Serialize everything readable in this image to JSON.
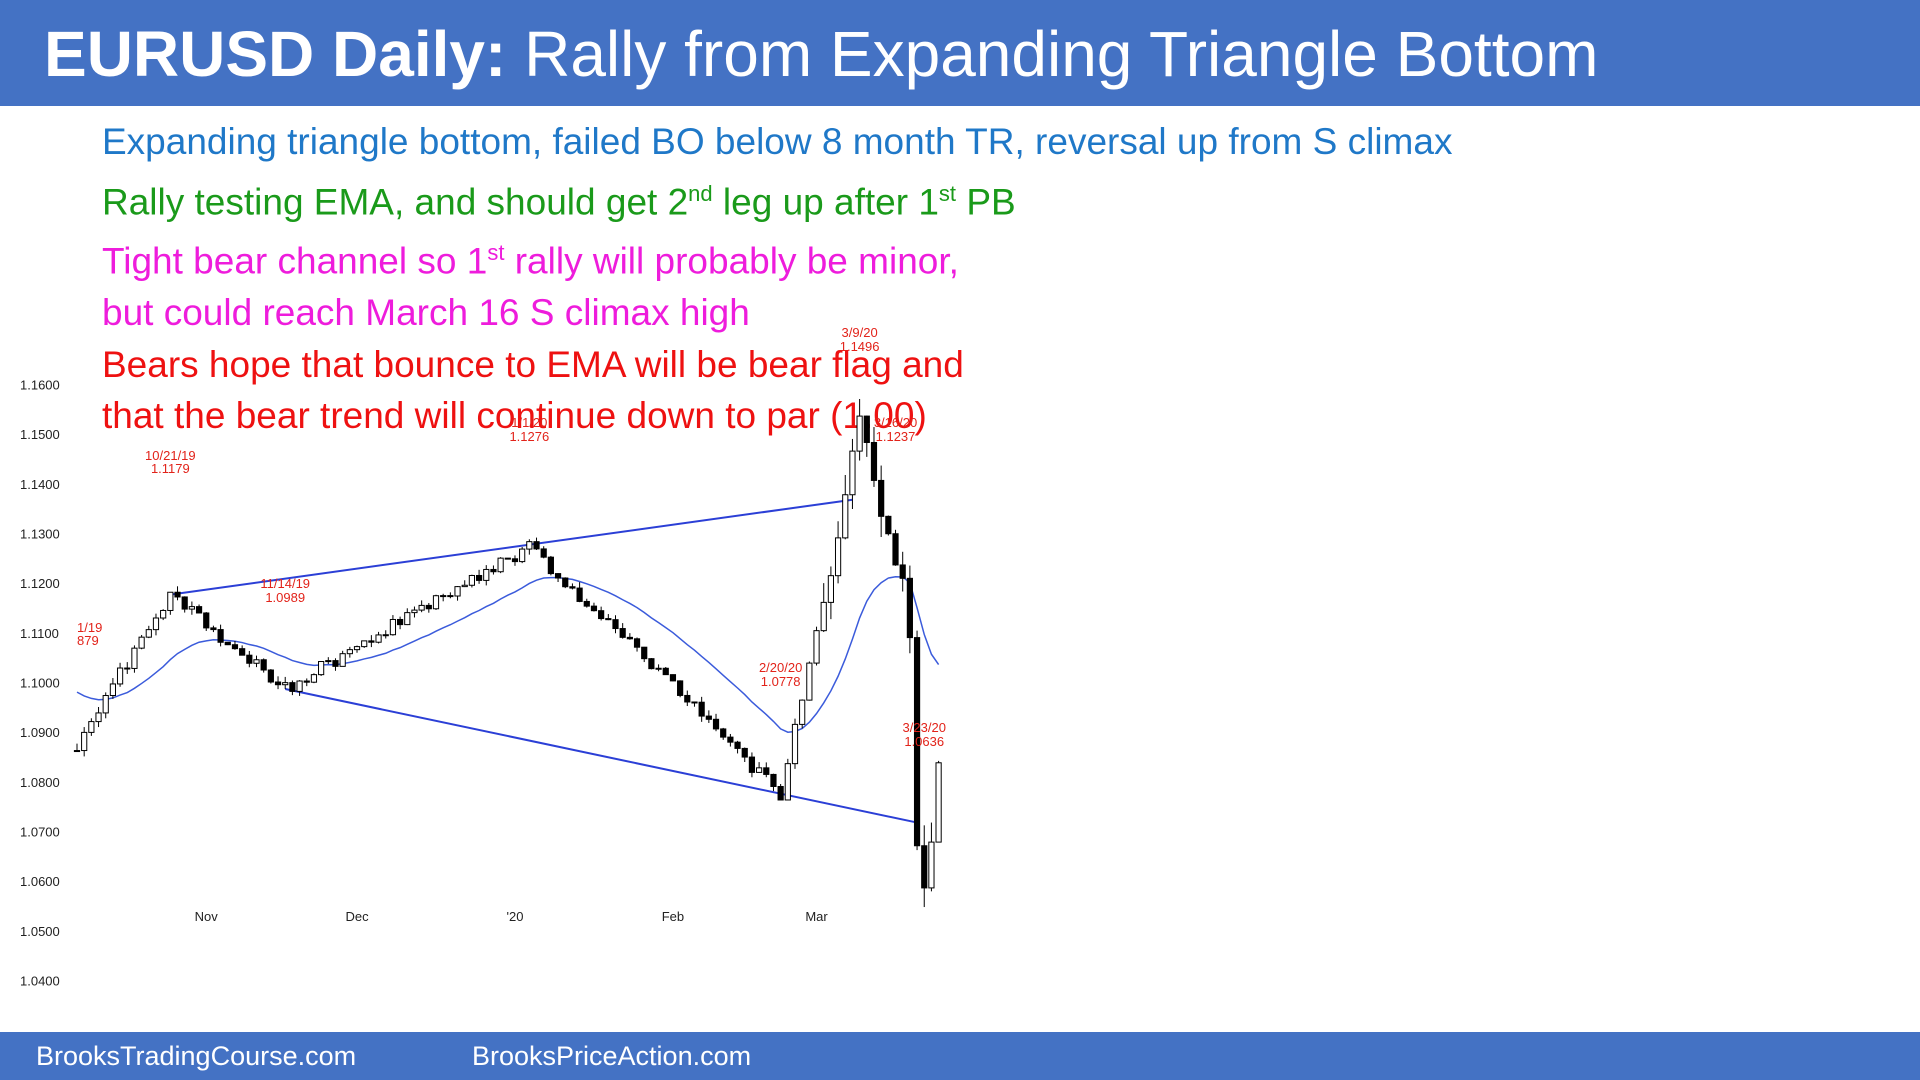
{
  "header": {
    "title_bold": "EURUSD Daily:",
    "title_rest": "Rally from Expanding Triangle Bottom"
  },
  "notes": [
    {
      "pre": "Expanding triangle bottom, failed BO below 8 month TR, reversal up from S climax",
      "sup": "",
      "post": "",
      "color": "#1f78c8"
    },
    {
      "pre": "Rally testing EMA, and should get 2",
      "sup": "nd",
      "post": " leg up after 1",
      "sup2": "st",
      "post2": " PB",
      "color": "#1a9a1a"
    },
    {
      "pre": "Tight bear channel so 1",
      "sup": "st",
      "post": " rally will probably be minor,",
      "color": "#ee1cdc"
    },
    {
      "pre": "but could reach March 16 S climax high",
      "sup": "",
      "post": "",
      "color": "#ee1cdc"
    },
    {
      "pre": "Bears hope that bounce to EMA will be bear flag and",
      "sup": "",
      "post": "",
      "color": "#ee1111"
    },
    {
      "pre": "that the bear trend will continue down to par (1.00)",
      "sup": "",
      "post": "",
      "color": "#ee1111"
    }
  ],
  "footer": {
    "left": "BrooksTradingCourse.com",
    "right": "BrooksPriceAction.com"
  },
  "chart_data": {
    "type": "candlestick",
    "symbol": "EURUSD",
    "timeframe": "Daily",
    "y_ticks": [
      "1.1600",
      "1.1500",
      "1.1400",
      "1.1300",
      "1.1200",
      "1.1100",
      "1.1000",
      "1.0900",
      "1.0800",
      "1.0700",
      "1.0600",
      "1.0500",
      "1.0400"
    ],
    "ylim": [
      1.04,
      1.16
    ],
    "x_labels": [
      {
        "label": "Nov",
        "bar": 18
      },
      {
        "label": "Dec",
        "bar": 39
      },
      {
        "label": "'20",
        "bar": 61
      },
      {
        "label": "Feb",
        "bar": 83
      },
      {
        "label": "Mar",
        "bar": 103
      }
    ],
    "bar_count": 121,
    "key_points": [
      {
        "bar": 0,
        "price": 1.0879
      },
      {
        "bar": 13,
        "price": 1.1179
      },
      {
        "bar": 29,
        "price": 1.0989
      },
      {
        "bar": 63,
        "price": 1.1276
      },
      {
        "bar": 98,
        "price": 1.0778
      },
      {
        "bar": 109,
        "price": 1.1496
      },
      {
        "bar": 113,
        "price": 1.1298
      },
      {
        "bar": 114,
        "price": 1.1237
      },
      {
        "bar": 116,
        "price": 1.1095
      },
      {
        "bar": 117,
        "price": 1.0695
      },
      {
        "bar": 118,
        "price": 1.0636
      },
      {
        "bar": 119,
        "price": 1.072
      },
      {
        "bar": 121,
        "price": 1.0954
      }
    ],
    "annotations": [
      {
        "date": "1/19",
        "price": "879",
        "bar": 0
      },
      {
        "date": "10/21/19",
        "price": "1.1179",
        "bar": 13
      },
      {
        "date": "11/14/19",
        "price": "1.0989",
        "bar": 29
      },
      {
        "date": "1/1/20",
        "price": "1.1276",
        "bar": 63
      },
      {
        "date": "2/20/20",
        "price": "1.0778",
        "bar": 98
      },
      {
        "date": "3/9/20",
        "price": "1.1496",
        "bar": 109
      },
      {
        "date": "3/16/20",
        "price": "1.1237",
        "bar": 114
      },
      {
        "date": "3/23/20",
        "price": "1.0636",
        "bar": 118
      }
    ],
    "trendlines": [
      {
        "name": "upper",
        "from": {
          "bar": 13,
          "price": 1.1179
        },
        "to": {
          "bar": 108,
          "price": 1.137
        }
      },
      {
        "name": "lower",
        "from": {
          "bar": 29,
          "price": 1.0989
        },
        "to": {
          "bar": 117,
          "price": 1.072
        }
      }
    ],
    "colors": {
      "up": "#ffffff",
      "down": "#000000",
      "ema": "#3b5bdb",
      "trendline": "#2b3fd6",
      "annotation": "#e2231a"
    }
  }
}
